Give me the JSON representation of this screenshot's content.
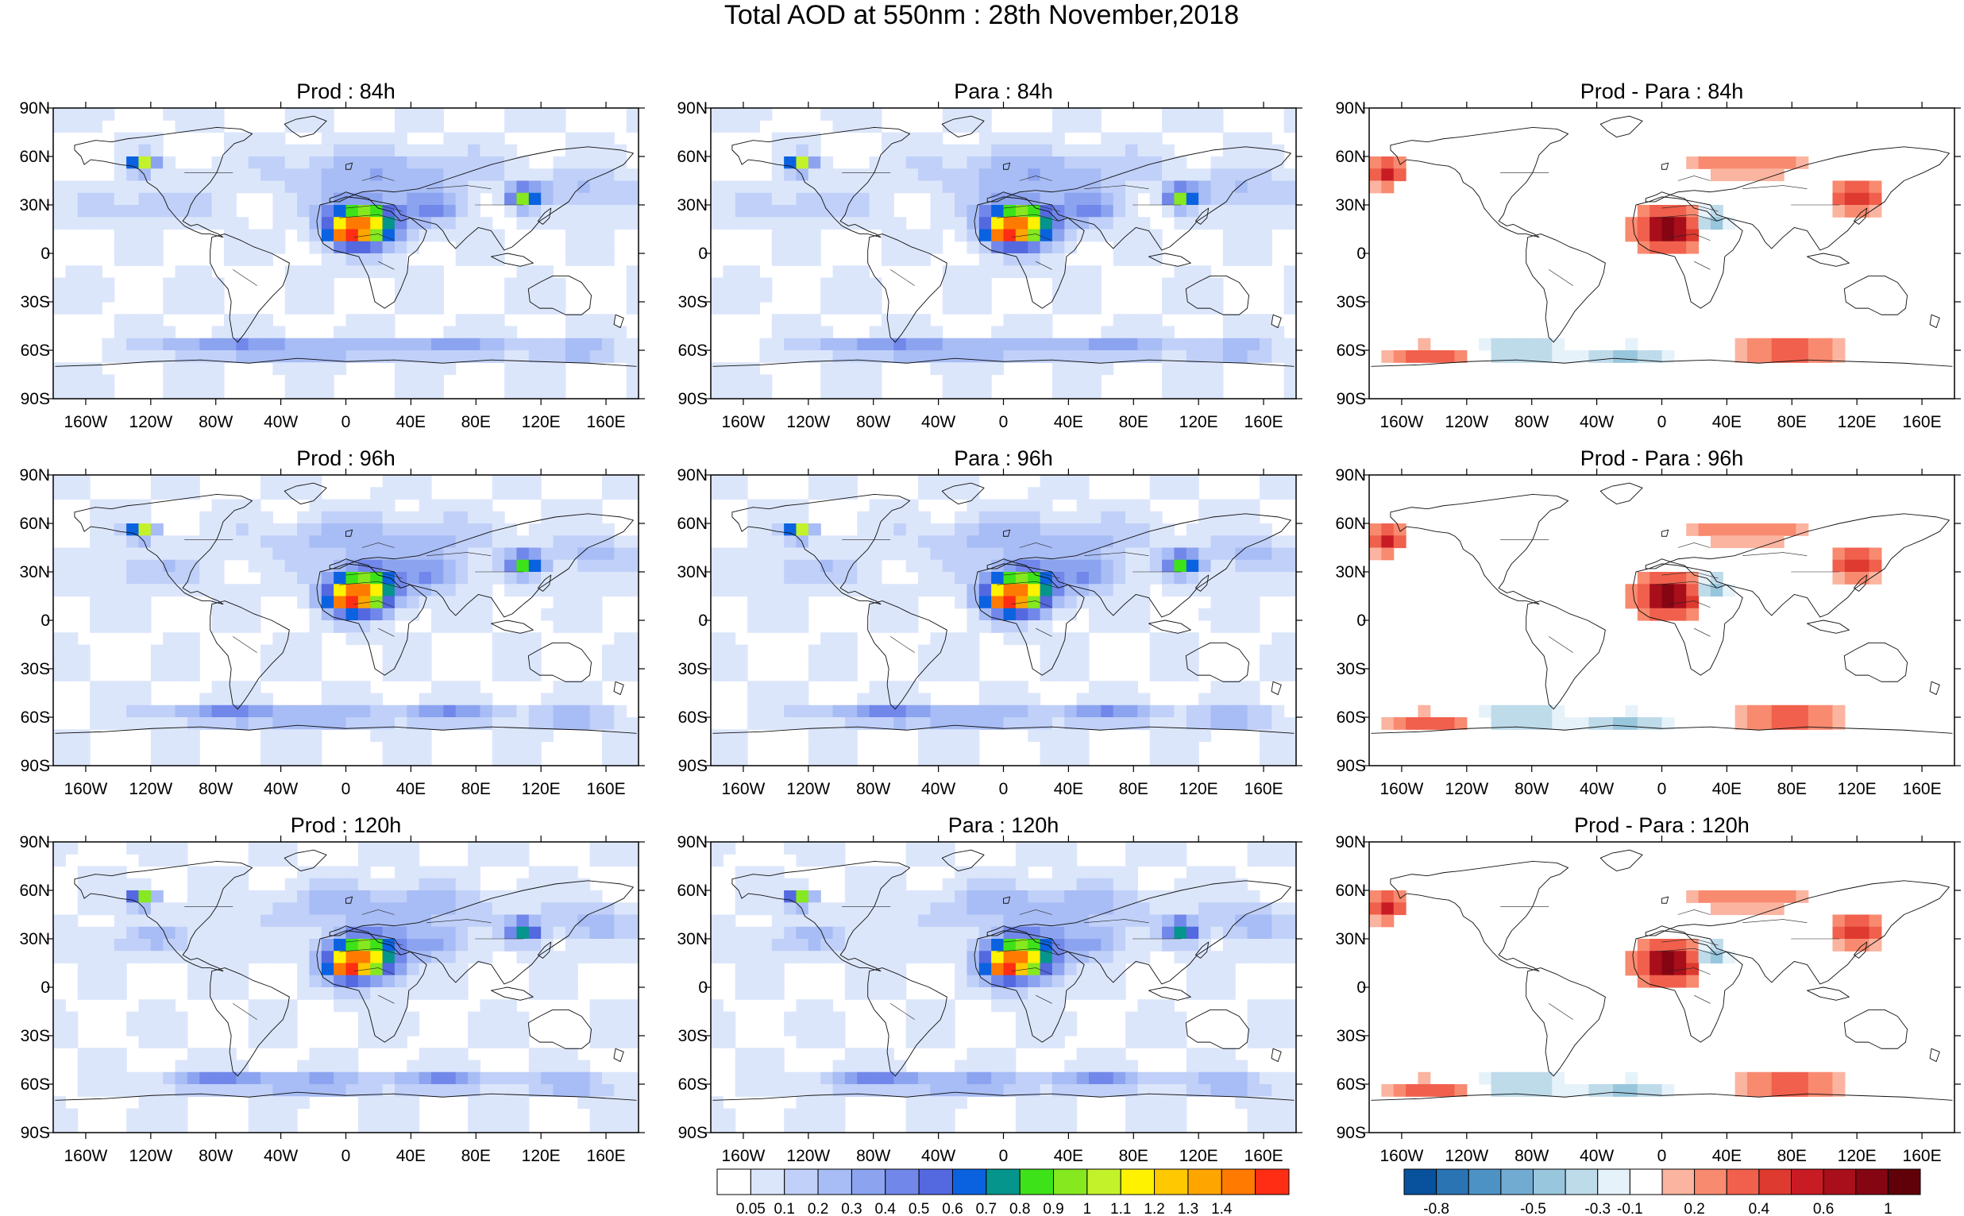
{
  "figure": {
    "title": "Total AOD at 550nm : 28th November,2018"
  },
  "axes": {
    "lat_labels": [
      "90N",
      "60N",
      "30N",
      "0",
      "30S",
      "60S",
      "90S"
    ],
    "lon_labels": [
      "160W",
      "120W",
      "80W",
      "40W",
      "0",
      "40E",
      "80E",
      "120E",
      "160E"
    ]
  },
  "chart_data": {
    "type": "heatmap",
    "map_projection": "cylindrical equidistant, global",
    "x_range": [
      -180,
      180
    ],
    "y_range": [
      -90,
      90
    ],
    "panels": [
      {
        "title": "Prod : 84h",
        "kind": "aod"
      },
      {
        "title": "Para : 84h",
        "kind": "aod"
      },
      {
        "title": "Prod - Para : 84h",
        "kind": "diff"
      },
      {
        "title": "Prod : 96h",
        "kind": "aod"
      },
      {
        "title": "Para : 96h",
        "kind": "aod"
      },
      {
        "title": "Prod - Para : 96h",
        "kind": "diff"
      },
      {
        "title": "Prod : 120h",
        "kind": "aod"
      },
      {
        "title": "Para : 120h",
        "kind": "aod"
      },
      {
        "title": "Prod - Para : 120h",
        "kind": "diff"
      }
    ],
    "aod_colorbar": {
      "labels": [
        "0.05",
        "0.1",
        "0.2",
        "0.3",
        "0.4",
        "0.5",
        "0.6",
        "0.7",
        "0.8",
        "0.9",
        "1",
        "1.1",
        "1.2",
        "1.3",
        "1.4"
      ],
      "colors": [
        "#ffffff",
        "#dce6fb",
        "#c0d0f8",
        "#a8bcf5",
        "#8ca4f0",
        "#7187ea",
        "#5468e0",
        "#0a62e0",
        "#05958c",
        "#3ee218",
        "#86e81e",
        "#c4f22a",
        "#fff200",
        "#ffc800",
        "#ffa500",
        "#ff7a00",
        "#ff2d14"
      ]
    },
    "diff_colorbar": {
      "labels": [
        "-0.8",
        "-0.5",
        "-0.3",
        "-0.1",
        "0.2",
        "0.4",
        "0.6",
        "1"
      ],
      "colors": [
        "#08519c",
        "#2b74b4",
        "#4d92c4",
        "#72abd2",
        "#98c6dd",
        "#bedbea",
        "#e6f2fa",
        "#ffffff",
        "#fbb4a0",
        "#f88a70",
        "#f0604d",
        "#de3a30",
        "#c81b23",
        "#a90e1b",
        "#850513",
        "#600008"
      ]
    },
    "features": {
      "aod_hotspots": [
        "Canadian wildfire plume near 125W 55N",
        "West Africa biomass burning near 10W-20E, 0-20N",
        "East China near 115E 35N",
        "Southern Ocean sea-salt band near 60S"
      ]
    }
  }
}
